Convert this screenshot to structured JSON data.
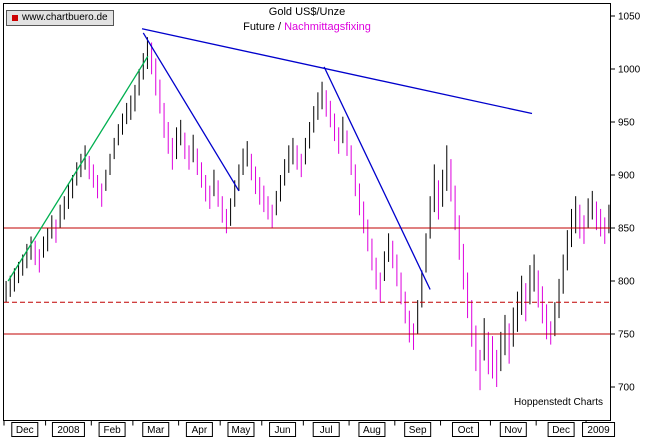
{
  "title": "Gold US$/Unze",
  "subtitle": {
    "prefix": "Future / ",
    "highlight": "Nachmittagsfixing"
  },
  "branding": {
    "logo": "www.chartbuero.de",
    "credit": "Hoppenstedt Charts"
  },
  "colors": {
    "bar_up": "#000000",
    "bar_down": "#dd00dd",
    "magenta": "#dd00dd",
    "trend_blue": "#0000cc",
    "support_green": "#00b050",
    "level_red": "#c00000",
    "axis_black": "#000000"
  },
  "chart_data": {
    "type": "bar",
    "style": "daily high-low price bars",
    "title": "Gold US$/Unze",
    "subtitle": "Future / Nachmittagsfixing",
    "y_axis": {
      "min": 700,
      "max": 1050,
      "ticks": [
        1050,
        1000,
        950,
        900,
        850,
        800,
        750,
        700
      ],
      "unit": "US$/Unze",
      "side": "right",
      "grid": false
    },
    "x_axis": {
      "labels": [
        "Dec",
        "2008",
        "Feb",
        "Mar",
        "Apr",
        "May",
        "Jun",
        "Jul",
        "Aug",
        "Sep",
        "Oct",
        "Nov",
        "Dec",
        "2009"
      ],
      "month_ticks": [
        0,
        10,
        21,
        31,
        42,
        52,
        62,
        72,
        83,
        94,
        105,
        117,
        128,
        140
      ],
      "n_bars": 146
    },
    "bars": [
      [
        800,
        780
      ],
      [
        805,
        785
      ],
      [
        812,
        790
      ],
      [
        818,
        798
      ],
      [
        825,
        805
      ],
      [
        835,
        812
      ],
      [
        842,
        820
      ],
      [
        838,
        815
      ],
      [
        830,
        808
      ],
      [
        842,
        822
      ],
      [
        850,
        828
      ],
      [
        862,
        840
      ],
      [
        858,
        836
      ],
      [
        872,
        850
      ],
      [
        880,
        858
      ],
      [
        892,
        868
      ],
      [
        900,
        878
      ],
      [
        912,
        890
      ],
      [
        920,
        898
      ],
      [
        928,
        905
      ],
      [
        918,
        896
      ],
      [
        910,
        888
      ],
      [
        900,
        878
      ],
      [
        892,
        870
      ],
      [
        905,
        885
      ],
      [
        920,
        900
      ],
      [
        935,
        915
      ],
      [
        948,
        928
      ],
      [
        958,
        938
      ],
      [
        968,
        948
      ],
      [
        975,
        952
      ],
      [
        985,
        960
      ],
      [
        1000,
        975
      ],
      [
        1015,
        990
      ],
      [
        1030,
        1000
      ],
      [
        1025,
        995
      ],
      [
        1010,
        975
      ],
      [
        990,
        958
      ],
      [
        968,
        935
      ],
      [
        950,
        920
      ],
      [
        935,
        905
      ],
      [
        945,
        915
      ],
      [
        952,
        928
      ],
      [
        940,
        915
      ],
      [
        928,
        905
      ],
      [
        938,
        912
      ],
      [
        925,
        900
      ],
      [
        912,
        888
      ],
      [
        900,
        875
      ],
      [
        890,
        868
      ],
      [
        905,
        880
      ],
      [
        895,
        870
      ],
      [
        880,
        855
      ],
      [
        868,
        845
      ],
      [
        878,
        852
      ],
      [
        895,
        870
      ],
      [
        910,
        885
      ],
      [
        925,
        900
      ],
      [
        932,
        908
      ],
      [
        920,
        895
      ],
      [
        908,
        882
      ],
      [
        898,
        872
      ],
      [
        890,
        865
      ],
      [
        880,
        858
      ],
      [
        872,
        850
      ],
      [
        885,
        862
      ],
      [
        900,
        875
      ],
      [
        915,
        890
      ],
      [
        928,
        902
      ],
      [
        935,
        910
      ],
      [
        928,
        905
      ],
      [
        920,
        898
      ],
      [
        935,
        910
      ],
      [
        950,
        925
      ],
      [
        965,
        940
      ],
      [
        978,
        952
      ],
      [
        988,
        962
      ],
      [
        980,
        955
      ],
      [
        970,
        945
      ],
      [
        958,
        932
      ],
      [
        945,
        920
      ],
      [
        955,
        930
      ],
      [
        942,
        918
      ],
      [
        928,
        900
      ],
      [
        910,
        880
      ],
      [
        892,
        862
      ],
      [
        875,
        845
      ],
      [
        858,
        828
      ],
      [
        840,
        810
      ],
      [
        822,
        792
      ],
      [
        808,
        780
      ],
      [
        828,
        800
      ],
      [
        845,
        818
      ],
      [
        838,
        812
      ],
      [
        825,
        795
      ],
      [
        808,
        778
      ],
      [
        790,
        760
      ],
      [
        772,
        742
      ],
      [
        760,
        735
      ],
      [
        782,
        750
      ],
      [
        810,
        775
      ],
      [
        845,
        808
      ],
      [
        880,
        840
      ],
      [
        910,
        865
      ],
      [
        895,
        858
      ],
      [
        905,
        870
      ],
      [
        928,
        885
      ],
      [
        915,
        875
      ],
      [
        890,
        848
      ],
      [
        862,
        820
      ],
      [
        835,
        792
      ],
      [
        808,
        765
      ],
      [
        782,
        738
      ],
      [
        758,
        715
      ],
      [
        735,
        697
      ],
      [
        765,
        725
      ],
      [
        752,
        712
      ],
      [
        748,
        708
      ],
      [
        735,
        700
      ],
      [
        752,
        715
      ],
      [
        768,
        730
      ],
      [
        760,
        722
      ],
      [
        775,
        738
      ],
      [
        790,
        752
      ],
      [
        805,
        768
      ],
      [
        798,
        762
      ],
      [
        815,
        778
      ],
      [
        825,
        790
      ],
      [
        810,
        775
      ],
      [
        795,
        760
      ],
      [
        778,
        745
      ],
      [
        762,
        740
      ],
      [
        780,
        748
      ],
      [
        802,
        765
      ],
      [
        825,
        788
      ],
      [
        848,
        810
      ],
      [
        868,
        832
      ],
      [
        880,
        845
      ],
      [
        872,
        840
      ],
      [
        862,
        835
      ],
      [
        878,
        850
      ],
      [
        885,
        858
      ],
      [
        875,
        848
      ],
      [
        868,
        842
      ],
      [
        860,
        835
      ],
      [
        872,
        845
      ]
    ],
    "levels": [
      {
        "price": 850,
        "style": "solid"
      },
      {
        "price": 780,
        "style": "dashed"
      },
      {
        "price": 750,
        "style": "solid"
      }
    ],
    "trendlines": [
      {
        "name": "primary-downtrend-line",
        "from_bar": 33.2,
        "from_price": 1038,
        "to_bar": 127,
        "to_price": 958,
        "color_key": "trend_blue"
      },
      {
        "name": "march-breakdown-line",
        "from_bar": 33.5,
        "from_price": 1034,
        "to_bar": 56.5,
        "to_price": 885,
        "color_key": "trend_blue"
      },
      {
        "name": "july-breakdown-line",
        "from_bar": 77,
        "from_price": 1002,
        "to_bar": 102.5,
        "to_price": 792,
        "color_key": "trend_blue"
      },
      {
        "name": "spring-uptrend-support-line",
        "from_bar": 1,
        "from_price": 800,
        "to_bar": 34.6,
        "to_price": 1012,
        "color_key": "support_green"
      }
    ]
  }
}
